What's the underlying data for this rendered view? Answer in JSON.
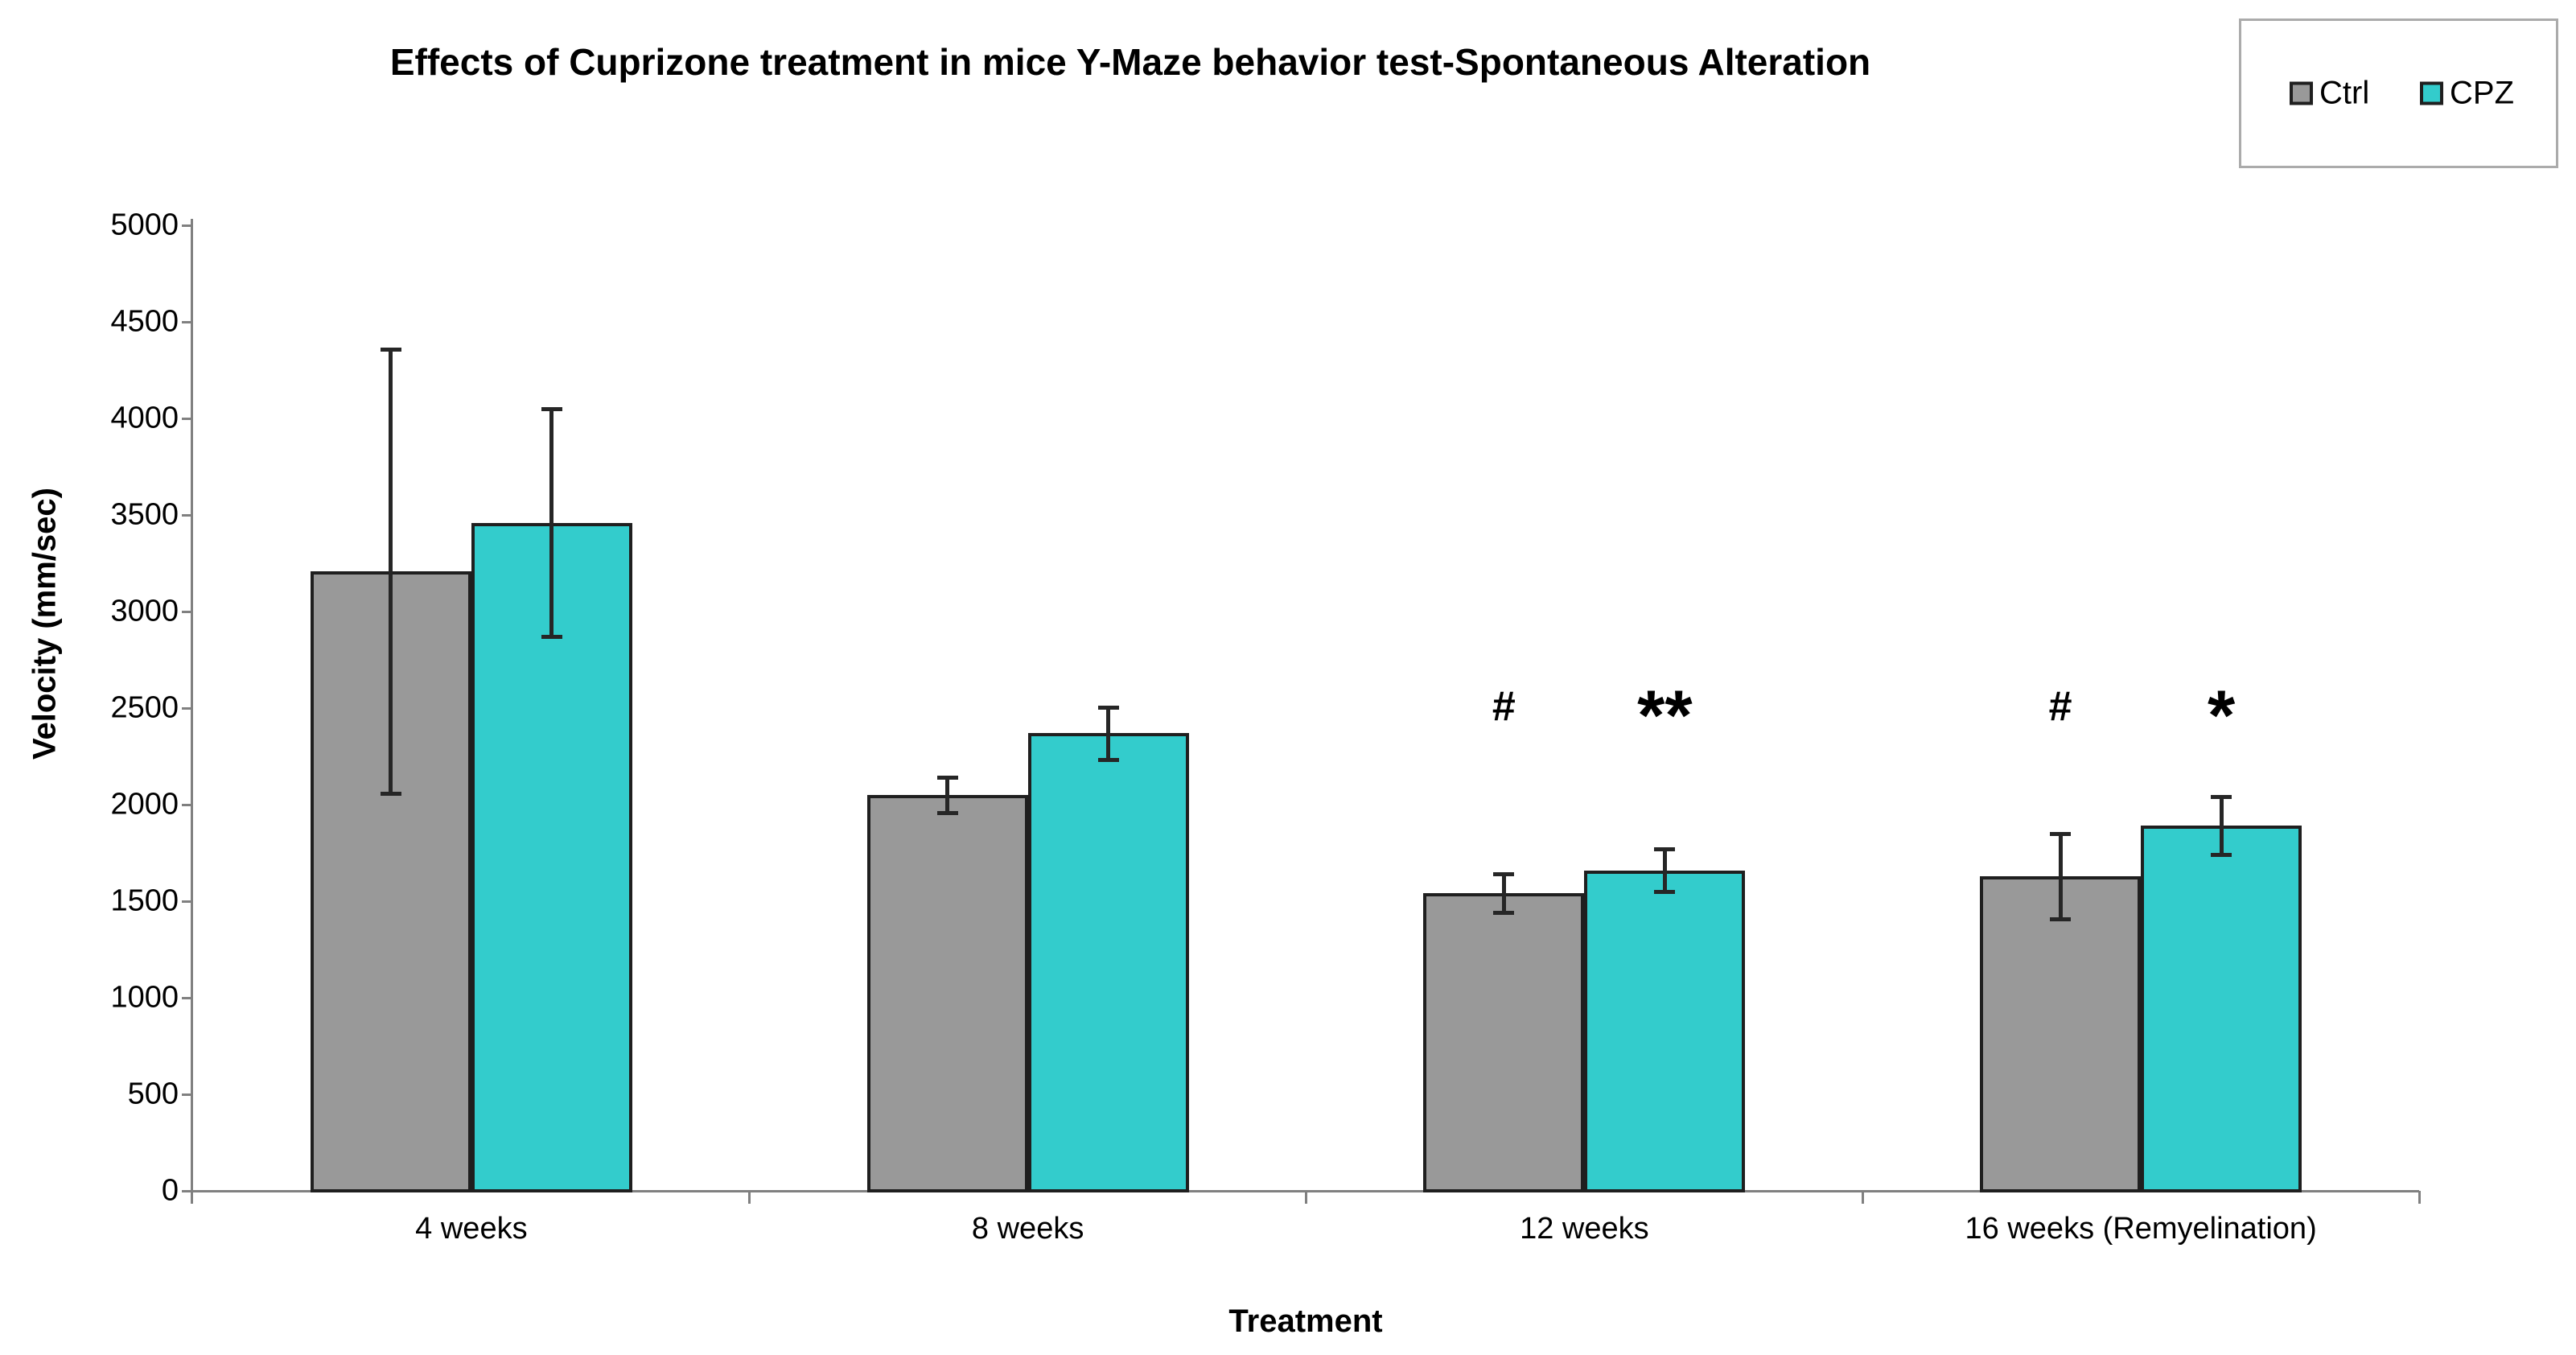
{
  "chart_data": {
    "type": "bar",
    "title": "Effects of Cuprizone treatment in mice Y-Maze behavior test-Spontaneous Alteration",
    "categories": [
      "4 weeks",
      "8 weeks",
      "12 weeks",
      "16 weeks (Remyelination)"
    ],
    "series": [
      {
        "name": "Ctrl",
        "color": "#999999",
        "values": [
          3210,
          2050,
          1540,
          1630
        ],
        "errors": [
          1150,
          90,
          100,
          220
        ]
      },
      {
        "name": "CPZ",
        "color": "#33cccc",
        "values": [
          3460,
          2370,
          1660,
          1890
        ],
        "errors": [
          590,
          135,
          110,
          150
        ]
      }
    ],
    "annotations": [
      {
        "category": "12 weeks",
        "series": "Ctrl",
        "text": "#",
        "cat_index": 2,
        "series_index": 0
      },
      {
        "category": "12 weeks",
        "series": "CPZ",
        "text": "**",
        "cat_index": 2,
        "series_index": 1
      },
      {
        "category": "16 weeks (Remyelination)",
        "series": "Ctrl",
        "text": "#",
        "cat_index": 3,
        "series_index": 0
      },
      {
        "category": "16 weeks (Remyelination)",
        "series": "CPZ",
        "text": "*",
        "cat_index": 3,
        "series_index": 1
      }
    ],
    "xlabel": "Treatment",
    "ylabel": "Velocity (mm/sec)",
    "ylim": [
      0,
      5000
    ],
    "ytick_step": 500,
    "yticks": [
      0,
      500,
      1000,
      1500,
      2000,
      2500,
      3000,
      3500,
      4000,
      4500,
      5000
    ],
    "grid": false,
    "legend_position": "top-right"
  },
  "colors": {
    "bar_border": "#1f1f1f",
    "axis_line": "#808080",
    "error_bar": "#262626",
    "legend_border": "#ababab",
    "ctrl_fill": "#999999",
    "cpz_fill": "#33cccc",
    "text": "#000000"
  }
}
